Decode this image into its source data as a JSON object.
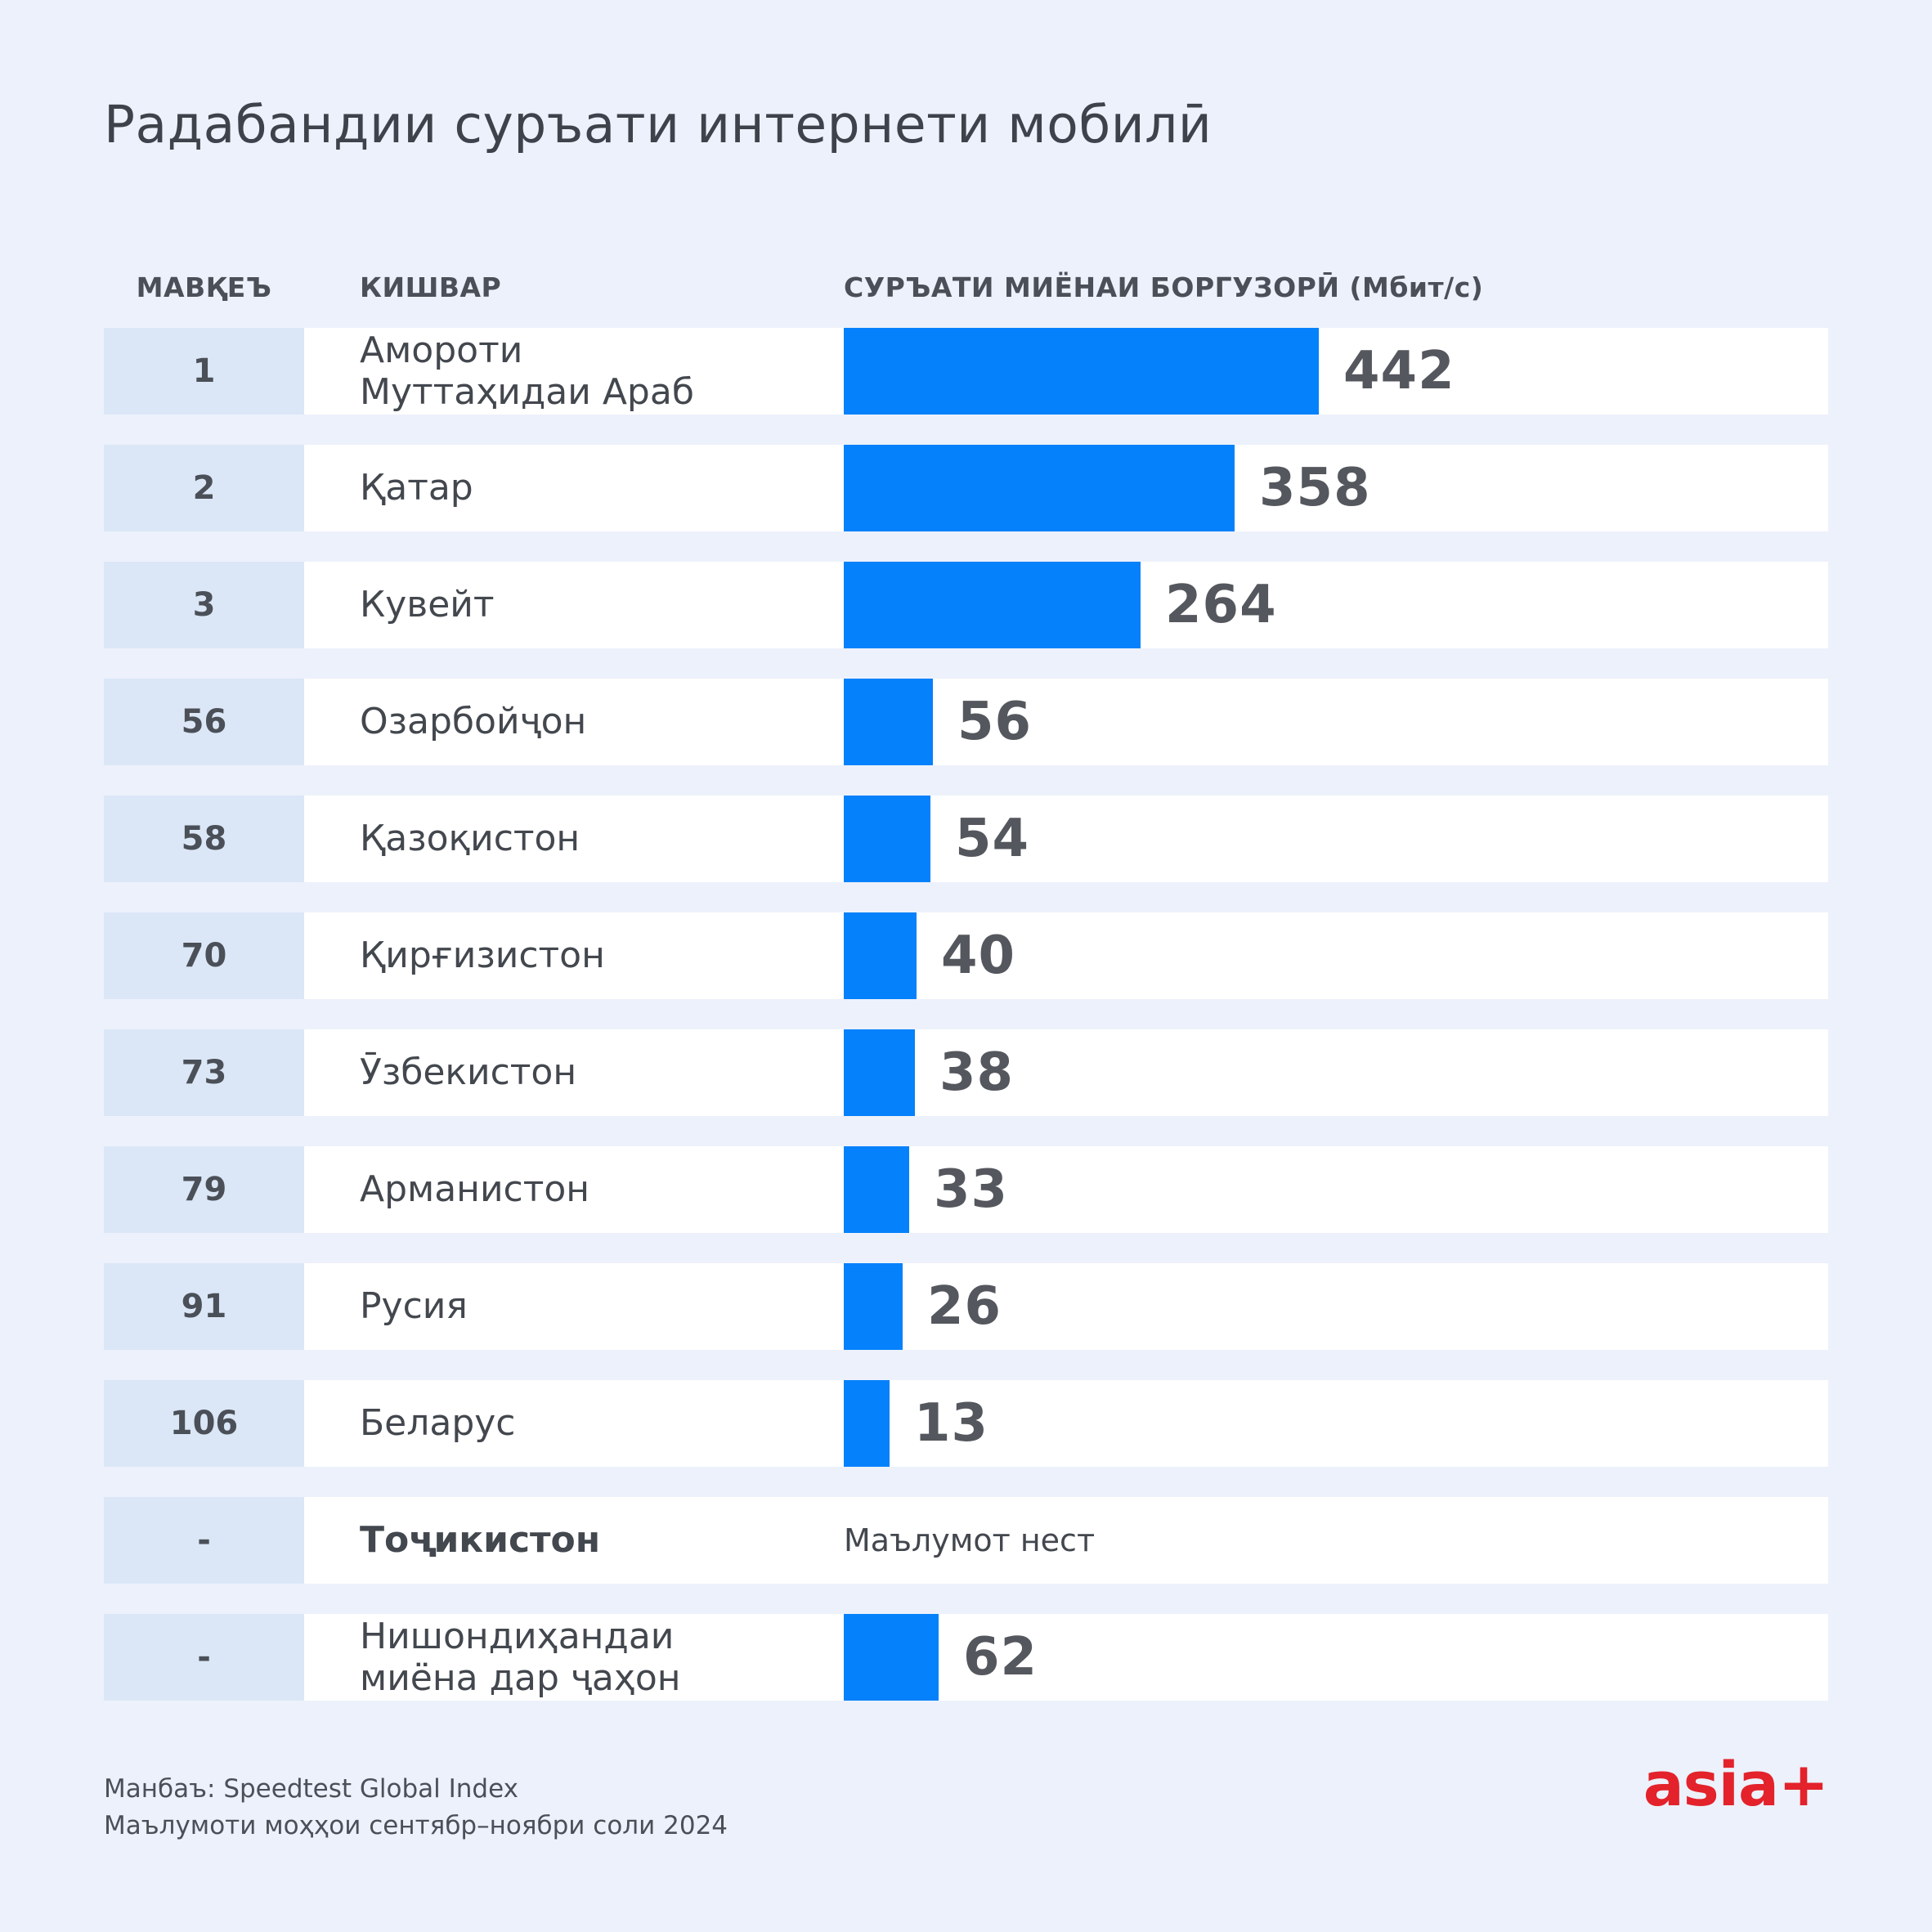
{
  "title": "Радабандии суръати интернети мобилӣ",
  "table": {
    "headers": {
      "rank": "МАВҚЕЪ",
      "country": "КИШВАР",
      "speed": "СУРЪАТИ МИЁНАИ БОРГУЗОРӢ (Мбит/с)"
    },
    "rows": [
      {
        "rank": "1",
        "country": "Амороти\nМуттаҳидаи Араб",
        "value": 442,
        "value_label": "442"
      },
      {
        "rank": "2",
        "country": "Қатар",
        "value": 358,
        "value_label": "358"
      },
      {
        "rank": "3",
        "country": "Кувейт",
        "value": 264,
        "value_label": "264"
      },
      {
        "rank": "56",
        "country": "Озарбойҷон",
        "value": 56,
        "value_label": "56"
      },
      {
        "rank": "58",
        "country": "Қазоқистон",
        "value": 54,
        "value_label": "54"
      },
      {
        "rank": "70",
        "country": "Қирғизистон",
        "value": 40,
        "value_label": "40"
      },
      {
        "rank": "73",
        "country": "Ӯзбекистон",
        "value": 38,
        "value_label": "38"
      },
      {
        "rank": "79",
        "country": "Арманистон",
        "value": 33,
        "value_label": "33"
      },
      {
        "rank": "91",
        "country": "Русия",
        "value": 26,
        "value_label": "26"
      },
      {
        "rank": "106",
        "country": "Беларус",
        "value": 13,
        "value_label": "13"
      },
      {
        "rank": "-",
        "country": "Тоҷикистон",
        "value": null,
        "note": "Маълумот нест"
      },
      {
        "rank": "-",
        "country": "Нишондиҳандаи\nмиёна дар ҷаҳон",
        "value": 62,
        "value_label": "62"
      }
    ]
  },
  "footer": {
    "source": "Манбаъ: Speedtest Global Index",
    "period": "Маълумоти моҳҳои сентябр–ноябри соли 2024"
  },
  "logo_text": "asia+",
  "colors": {
    "background": "#edf1fb",
    "rank_cell": "#dbe7f7",
    "bar": "#0581fb",
    "logo_red": "#e3222b"
  },
  "chart_data": {
    "type": "bar",
    "orientation": "horizontal",
    "title": "Радабандии суръати интернети мобилӣ",
    "xlabel": "СУРЪАТИ МИЁНАИ БОРГУЗОРӢ (Мбит/с)",
    "value_unit": "Мбит/с",
    "categories": [
      "Амороти Муттаҳидаи Араб",
      "Қатар",
      "Кувейт",
      "Озарбойҷон",
      "Қазоқистон",
      "Қирғизистон",
      "Ӯзбекистон",
      "Арманистон",
      "Русия",
      "Беларус",
      "Тоҷикистон",
      "Нишондиҳандаи миёна дар ҷаҳон"
    ],
    "ranks": [
      "1",
      "2",
      "3",
      "56",
      "58",
      "70",
      "73",
      "79",
      "91",
      "106",
      "-",
      "-"
    ],
    "values": [
      442,
      358,
      264,
      56,
      54,
      40,
      38,
      33,
      26,
      13,
      null,
      62
    ],
    "no_data_label": "Маълумот нест",
    "bar_color": "#0581fb",
    "legend": false,
    "grid": false
  }
}
